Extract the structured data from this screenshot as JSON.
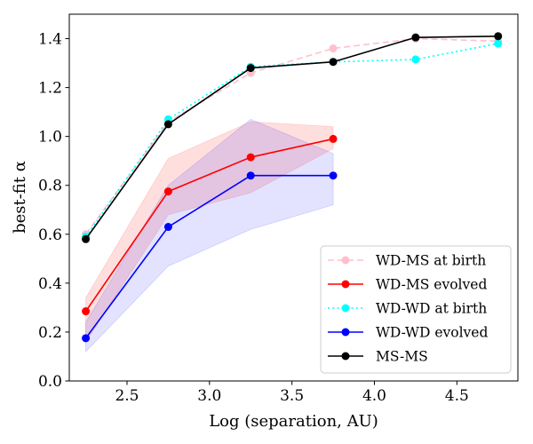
{
  "chart_data": {
    "type": "line",
    "xlabel": "Log (separation, AU)",
    "ylabel": "best-fit α",
    "xlim": [
      2.15,
      4.87
    ],
    "ylim": [
      0.0,
      1.5
    ],
    "xticks": [
      2.5,
      3.0,
      3.5,
      4.0,
      4.5
    ],
    "xtick_labels": [
      "2.5",
      "3.0",
      "3.5",
      "4.0",
      "4.5"
    ],
    "yticks": [
      0.0,
      0.2,
      0.4,
      0.6,
      0.8,
      1.0,
      1.2,
      1.4
    ],
    "ytick_labels": [
      "0.0",
      "0.2",
      "0.4",
      "0.6",
      "0.8",
      "1.0",
      "1.2",
      "1.4"
    ],
    "legend_position": "lower-right",
    "bands": [
      {
        "name": "WD-MS evolved range",
        "color": "#ff0000",
        "opacity": 0.13,
        "x": [
          2.25,
          2.75,
          3.25,
          3.75
        ],
        "lower": [
          0.16,
          0.68,
          0.77,
          0.95
        ],
        "upper": [
          0.34,
          0.91,
          1.06,
          1.04
        ]
      },
      {
        "name": "WD-WD evolved range",
        "color": "#0000ff",
        "opacity": 0.11,
        "x": [
          2.25,
          2.75,
          3.25,
          3.75
        ],
        "lower": [
          0.12,
          0.47,
          0.62,
          0.72
        ],
        "upper": [
          0.24,
          0.8,
          1.07,
          0.93
        ]
      }
    ],
    "series": [
      {
        "name": "WD-MS at birth",
        "color": "#ffc0cb",
        "dash": "dashed",
        "x": [
          2.25,
          2.75,
          3.25,
          3.75,
          4.25,
          4.75
        ],
        "y": [
          0.6,
          1.06,
          1.26,
          1.36,
          1.4,
          1.39
        ]
      },
      {
        "name": "WD-MS evolved",
        "color": "#ff0000",
        "dash": "solid",
        "x": [
          2.25,
          2.75,
          3.25,
          3.75
        ],
        "y": [
          0.285,
          0.775,
          0.915,
          0.99
        ]
      },
      {
        "name": "WD-WD at birth",
        "color": "#00ffff",
        "dash": "dotted",
        "x": [
          2.25,
          2.75,
          3.25,
          3.75,
          4.25,
          4.75
        ],
        "y": [
          0.59,
          1.07,
          1.285,
          1.305,
          1.315,
          1.38
        ]
      },
      {
        "name": "WD-WD evolved",
        "color": "#0000ff",
        "dash": "solid",
        "x": [
          2.25,
          2.75,
          3.25,
          3.75
        ],
        "y": [
          0.175,
          0.63,
          0.84,
          0.84
        ]
      },
      {
        "name": "MS-MS",
        "color": "#000000",
        "dash": "solid",
        "x": [
          2.25,
          2.75,
          3.25,
          3.75,
          4.25,
          4.75
        ],
        "y": [
          0.58,
          1.05,
          1.28,
          1.305,
          1.405,
          1.41
        ]
      }
    ]
  }
}
